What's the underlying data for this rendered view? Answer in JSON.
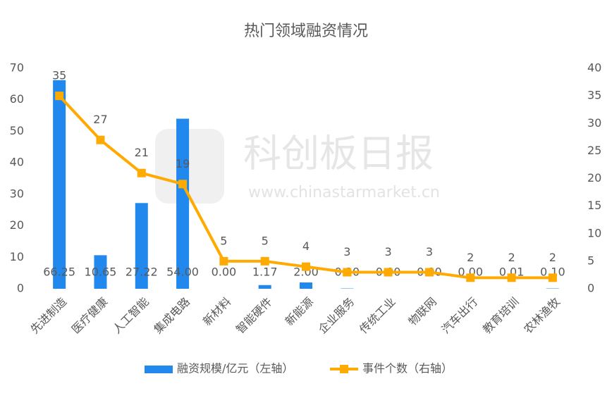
{
  "chart_data": {
    "type": "bar",
    "title": "热门领域融资情况",
    "categories": [
      "先进制造",
      "医疗健康",
      "人工智能",
      "集成电路",
      "新材料",
      "智能硬件",
      "新能源",
      "企业服务",
      "传统工业",
      "物联网",
      "汽车出行",
      "教育培训",
      "农林渔牧"
    ],
    "series": [
      {
        "name": "融资规模/亿元（左轴）",
        "type": "bar",
        "color": "#2188ee",
        "values": [
          66.25,
          10.65,
          27.22,
          54,
          0,
          1.17,
          2,
          0.1,
          0,
          0,
          0,
          0.01,
          0.1
        ],
        "value_labels": [
          "66.25",
          "10.65",
          "27.22",
          "54.00",
          "0.00",
          "1.17",
          "2.00",
          "0.10",
          "0.00",
          "0.00",
          "0.00",
          "0.01",
          "0.10"
        ]
      },
      {
        "name": "事件个数（右轴）",
        "type": "line",
        "axis": "y2",
        "color": "#ffaa00",
        "values": [
          35,
          27,
          21,
          19,
          5,
          5,
          4,
          3,
          3,
          3,
          2,
          2,
          2
        ]
      }
    ],
    "ylim": [
      0,
      70
    ],
    "yticks": [
      0,
      10,
      20,
      30,
      40,
      50,
      60,
      70
    ],
    "y2lim": [
      0,
      40
    ],
    "y2ticks": [
      0,
      5,
      10,
      15,
      20,
      25,
      30,
      35,
      40
    ],
    "grid": false,
    "legend": "bottom",
    "watermark": {
      "text": "科创板日报",
      "url": "www.chinastarmarket.cn"
    }
  }
}
